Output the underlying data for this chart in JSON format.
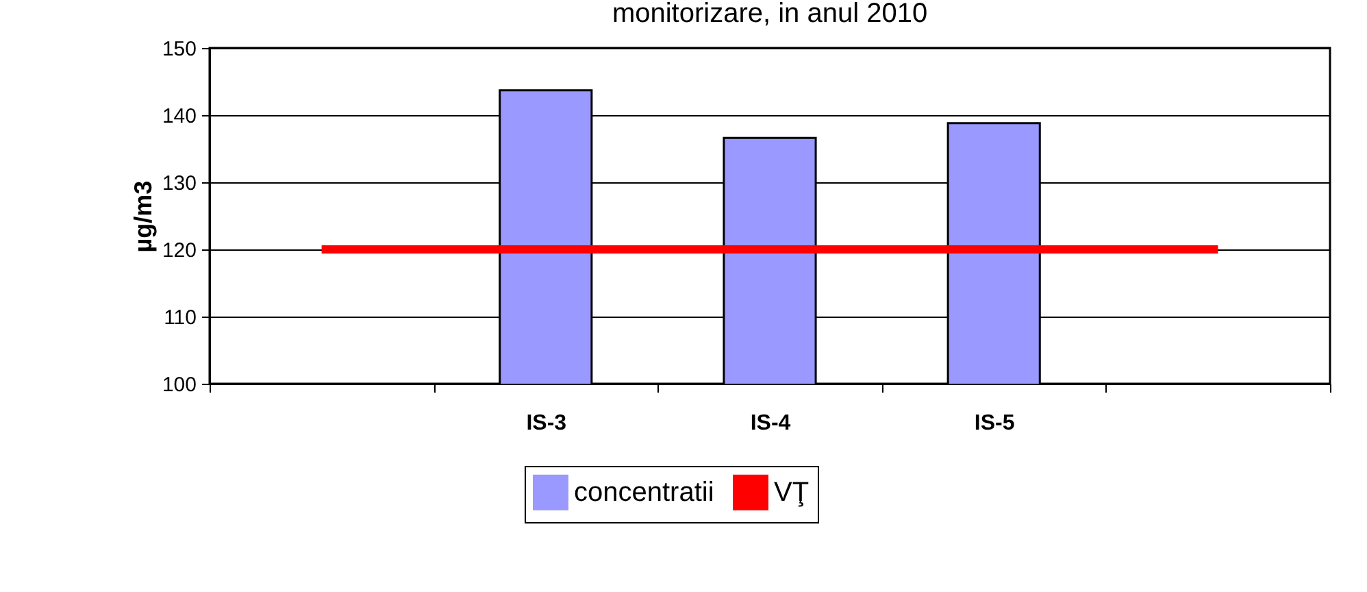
{
  "chart_data": {
    "type": "bar",
    "title": "monitorizare, in anul 2010",
    "ylabel": "µg/m3",
    "categories": [
      null,
      "IS-3",
      "IS-4",
      "IS-5",
      null
    ],
    "series": [
      {
        "name": "concentratii",
        "color": "#9999ff",
        "values": [
          null,
          143.7,
          136.6,
          138.8,
          null
        ]
      },
      {
        "name": "VŢ",
        "type": "line",
        "color": "#ff0000",
        "values": [
          120,
          120,
          120,
          120,
          120
        ]
      }
    ],
    "ylim": [
      100,
      150
    ],
    "yticks": [
      100,
      110,
      120,
      130,
      140,
      150
    ],
    "grid": "y",
    "legend": "bottom"
  }
}
